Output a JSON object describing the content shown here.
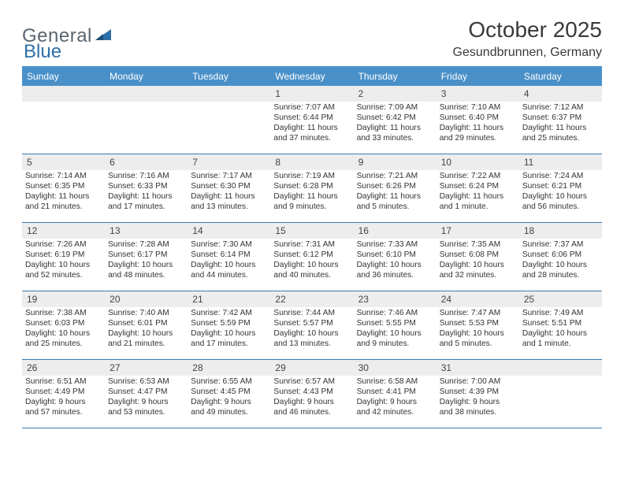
{
  "colors": {
    "accent": "#4a90c8",
    "border": "#3b7bb0",
    "daynum_bg": "#ededed",
    "text": "#333333",
    "logo_gray": "#5a6570",
    "logo_blue": "#2f6fa8",
    "background": "#ffffff"
  },
  "logo": {
    "general": "General",
    "blue": "Blue"
  },
  "title": "October 2025",
  "location": "Gesundbrunnen, Germany",
  "weekdays": [
    "Sunday",
    "Monday",
    "Tuesday",
    "Wednesday",
    "Thursday",
    "Friday",
    "Saturday"
  ],
  "weeks": [
    [
      {
        "blank": true
      },
      {
        "blank": true
      },
      {
        "blank": true
      },
      {
        "num": "1",
        "sunrise": "Sunrise: 7:07 AM",
        "sunset": "Sunset: 6:44 PM",
        "daylight1": "Daylight: 11 hours",
        "daylight2": "and 37 minutes."
      },
      {
        "num": "2",
        "sunrise": "Sunrise: 7:09 AM",
        "sunset": "Sunset: 6:42 PM",
        "daylight1": "Daylight: 11 hours",
        "daylight2": "and 33 minutes."
      },
      {
        "num": "3",
        "sunrise": "Sunrise: 7:10 AM",
        "sunset": "Sunset: 6:40 PM",
        "daylight1": "Daylight: 11 hours",
        "daylight2": "and 29 minutes."
      },
      {
        "num": "4",
        "sunrise": "Sunrise: 7:12 AM",
        "sunset": "Sunset: 6:37 PM",
        "daylight1": "Daylight: 11 hours",
        "daylight2": "and 25 minutes."
      }
    ],
    [
      {
        "num": "5",
        "sunrise": "Sunrise: 7:14 AM",
        "sunset": "Sunset: 6:35 PM",
        "daylight1": "Daylight: 11 hours",
        "daylight2": "and 21 minutes."
      },
      {
        "num": "6",
        "sunrise": "Sunrise: 7:16 AM",
        "sunset": "Sunset: 6:33 PM",
        "daylight1": "Daylight: 11 hours",
        "daylight2": "and 17 minutes."
      },
      {
        "num": "7",
        "sunrise": "Sunrise: 7:17 AM",
        "sunset": "Sunset: 6:30 PM",
        "daylight1": "Daylight: 11 hours",
        "daylight2": "and 13 minutes."
      },
      {
        "num": "8",
        "sunrise": "Sunrise: 7:19 AM",
        "sunset": "Sunset: 6:28 PM",
        "daylight1": "Daylight: 11 hours",
        "daylight2": "and 9 minutes."
      },
      {
        "num": "9",
        "sunrise": "Sunrise: 7:21 AM",
        "sunset": "Sunset: 6:26 PM",
        "daylight1": "Daylight: 11 hours",
        "daylight2": "and 5 minutes."
      },
      {
        "num": "10",
        "sunrise": "Sunrise: 7:22 AM",
        "sunset": "Sunset: 6:24 PM",
        "daylight1": "Daylight: 11 hours",
        "daylight2": "and 1 minute."
      },
      {
        "num": "11",
        "sunrise": "Sunrise: 7:24 AM",
        "sunset": "Sunset: 6:21 PM",
        "daylight1": "Daylight: 10 hours",
        "daylight2": "and 56 minutes."
      }
    ],
    [
      {
        "num": "12",
        "sunrise": "Sunrise: 7:26 AM",
        "sunset": "Sunset: 6:19 PM",
        "daylight1": "Daylight: 10 hours",
        "daylight2": "and 52 minutes."
      },
      {
        "num": "13",
        "sunrise": "Sunrise: 7:28 AM",
        "sunset": "Sunset: 6:17 PM",
        "daylight1": "Daylight: 10 hours",
        "daylight2": "and 48 minutes."
      },
      {
        "num": "14",
        "sunrise": "Sunrise: 7:30 AM",
        "sunset": "Sunset: 6:14 PM",
        "daylight1": "Daylight: 10 hours",
        "daylight2": "and 44 minutes."
      },
      {
        "num": "15",
        "sunrise": "Sunrise: 7:31 AM",
        "sunset": "Sunset: 6:12 PM",
        "daylight1": "Daylight: 10 hours",
        "daylight2": "and 40 minutes."
      },
      {
        "num": "16",
        "sunrise": "Sunrise: 7:33 AM",
        "sunset": "Sunset: 6:10 PM",
        "daylight1": "Daylight: 10 hours",
        "daylight2": "and 36 minutes."
      },
      {
        "num": "17",
        "sunrise": "Sunrise: 7:35 AM",
        "sunset": "Sunset: 6:08 PM",
        "daylight1": "Daylight: 10 hours",
        "daylight2": "and 32 minutes."
      },
      {
        "num": "18",
        "sunrise": "Sunrise: 7:37 AM",
        "sunset": "Sunset: 6:06 PM",
        "daylight1": "Daylight: 10 hours",
        "daylight2": "and 28 minutes."
      }
    ],
    [
      {
        "num": "19",
        "sunrise": "Sunrise: 7:38 AM",
        "sunset": "Sunset: 6:03 PM",
        "daylight1": "Daylight: 10 hours",
        "daylight2": "and 25 minutes."
      },
      {
        "num": "20",
        "sunrise": "Sunrise: 7:40 AM",
        "sunset": "Sunset: 6:01 PM",
        "daylight1": "Daylight: 10 hours",
        "daylight2": "and 21 minutes."
      },
      {
        "num": "21",
        "sunrise": "Sunrise: 7:42 AM",
        "sunset": "Sunset: 5:59 PM",
        "daylight1": "Daylight: 10 hours",
        "daylight2": "and 17 minutes."
      },
      {
        "num": "22",
        "sunrise": "Sunrise: 7:44 AM",
        "sunset": "Sunset: 5:57 PM",
        "daylight1": "Daylight: 10 hours",
        "daylight2": "and 13 minutes."
      },
      {
        "num": "23",
        "sunrise": "Sunrise: 7:46 AM",
        "sunset": "Sunset: 5:55 PM",
        "daylight1": "Daylight: 10 hours",
        "daylight2": "and 9 minutes."
      },
      {
        "num": "24",
        "sunrise": "Sunrise: 7:47 AM",
        "sunset": "Sunset: 5:53 PM",
        "daylight1": "Daylight: 10 hours",
        "daylight2": "and 5 minutes."
      },
      {
        "num": "25",
        "sunrise": "Sunrise: 7:49 AM",
        "sunset": "Sunset: 5:51 PM",
        "daylight1": "Daylight: 10 hours",
        "daylight2": "and 1 minute."
      }
    ],
    [
      {
        "num": "26",
        "sunrise": "Sunrise: 6:51 AM",
        "sunset": "Sunset: 4:49 PM",
        "daylight1": "Daylight: 9 hours",
        "daylight2": "and 57 minutes."
      },
      {
        "num": "27",
        "sunrise": "Sunrise: 6:53 AM",
        "sunset": "Sunset: 4:47 PM",
        "daylight1": "Daylight: 9 hours",
        "daylight2": "and 53 minutes."
      },
      {
        "num": "28",
        "sunrise": "Sunrise: 6:55 AM",
        "sunset": "Sunset: 4:45 PM",
        "daylight1": "Daylight: 9 hours",
        "daylight2": "and 49 minutes."
      },
      {
        "num": "29",
        "sunrise": "Sunrise: 6:57 AM",
        "sunset": "Sunset: 4:43 PM",
        "daylight1": "Daylight: 9 hours",
        "daylight2": "and 46 minutes."
      },
      {
        "num": "30",
        "sunrise": "Sunrise: 6:58 AM",
        "sunset": "Sunset: 4:41 PM",
        "daylight1": "Daylight: 9 hours",
        "daylight2": "and 42 minutes."
      },
      {
        "num": "31",
        "sunrise": "Sunrise: 7:00 AM",
        "sunset": "Sunset: 4:39 PM",
        "daylight1": "Daylight: 9 hours",
        "daylight2": "and 38 minutes."
      },
      {
        "blank": true
      }
    ]
  ]
}
